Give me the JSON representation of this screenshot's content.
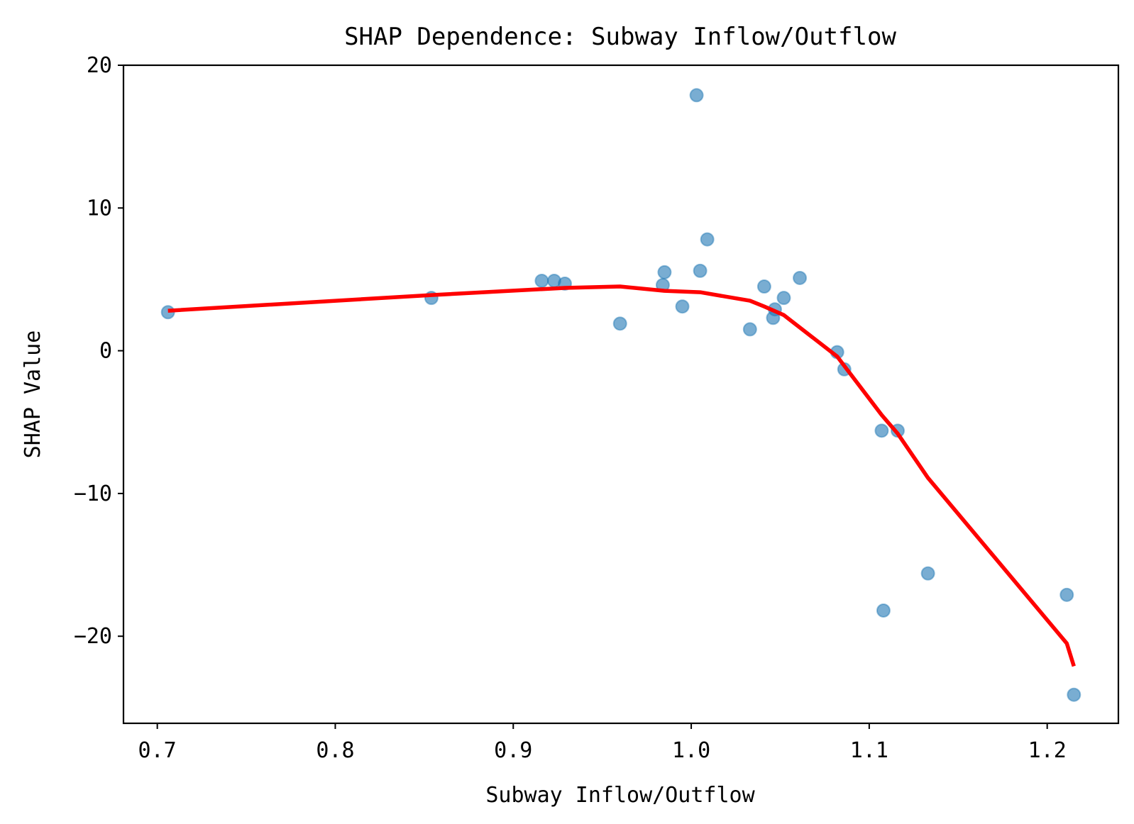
{
  "chart_data": {
    "type": "scatter",
    "title": "SHAP Dependence: Subway Inflow/Outflow",
    "xlabel": "Subway Inflow/Outflow",
    "ylabel": "SHAP Value",
    "xlim": [
      0.681,
      1.24
    ],
    "ylim": [
      -26.1,
      20
    ],
    "xticks": [
      "0.7",
      "0.8",
      "0.9",
      "1.0",
      "1.1",
      "1.2"
    ],
    "yticks": [
      "20",
      "10",
      "0",
      "−10",
      "−20"
    ],
    "xtick_values": [
      0.7,
      0.8,
      0.9,
      1.0,
      1.1,
      1.2
    ],
    "ytick_values": [
      20,
      10,
      0,
      -10,
      -20
    ],
    "grid": false,
    "series": [
      {
        "kind": "scatter",
        "color": "#1f77b4",
        "points": [
          [
            0.706,
            2.7
          ],
          [
            0.854,
            3.7
          ],
          [
            0.916,
            4.9
          ],
          [
            0.923,
            4.9
          ],
          [
            0.929,
            4.7
          ],
          [
            0.96,
            1.9
          ],
          [
            0.984,
            4.6
          ],
          [
            0.985,
            5.5
          ],
          [
            0.995,
            3.1
          ],
          [
            1.003,
            17.9
          ],
          [
            1.005,
            5.6
          ],
          [
            1.009,
            7.8
          ],
          [
            1.033,
            1.5
          ],
          [
            1.041,
            4.5
          ],
          [
            1.046,
            2.3
          ],
          [
            1.047,
            2.9
          ],
          [
            1.052,
            3.7
          ],
          [
            1.061,
            5.1
          ],
          [
            1.082,
            -0.1
          ],
          [
            1.086,
            -1.3
          ],
          [
            1.107,
            -5.6
          ],
          [
            1.108,
            -18.2
          ],
          [
            1.116,
            -5.6
          ],
          [
            1.133,
            -15.6
          ],
          [
            1.211,
            -17.1
          ],
          [
            1.215,
            -24.1
          ]
        ]
      },
      {
        "kind": "line",
        "color": "#ff0000",
        "points": [
          [
            0.706,
            2.8
          ],
          [
            0.854,
            3.9
          ],
          [
            0.929,
            4.4
          ],
          [
            0.96,
            4.5
          ],
          [
            0.985,
            4.2
          ],
          [
            1.005,
            4.1
          ],
          [
            1.033,
            3.5
          ],
          [
            1.041,
            3.1
          ],
          [
            1.052,
            2.5
          ],
          [
            1.082,
            -0.4
          ],
          [
            1.107,
            -4.5
          ],
          [
            1.116,
            -5.8
          ],
          [
            1.133,
            -8.9
          ],
          [
            1.211,
            -20.5
          ],
          [
            1.215,
            -22.1
          ]
        ]
      }
    ]
  }
}
